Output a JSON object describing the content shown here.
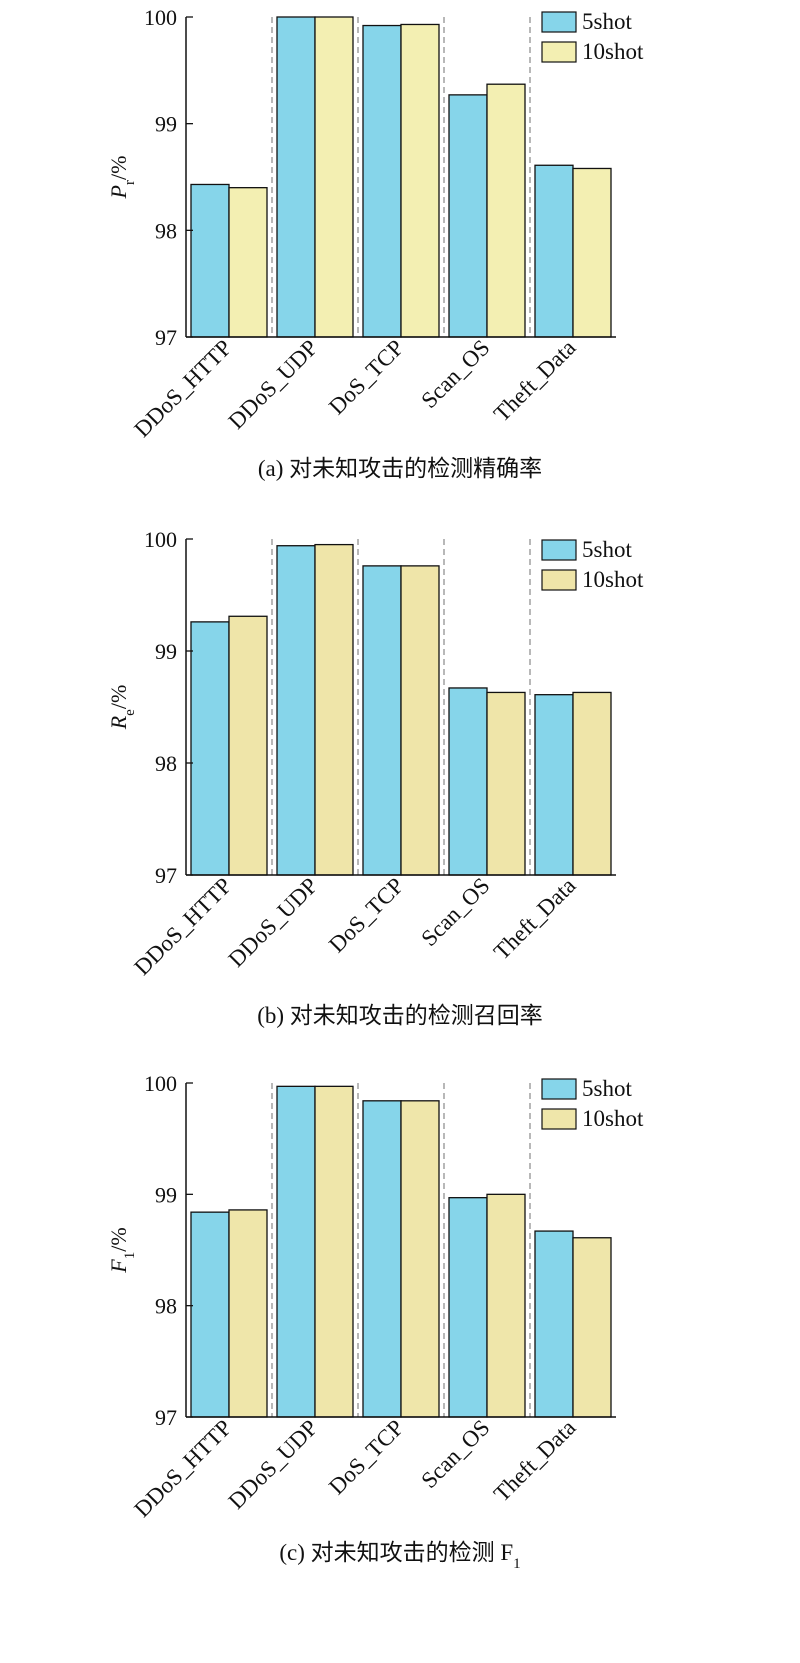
{
  "colors": {
    "series_5shot": "#86d5ea",
    "series_10shot": "#f3efb2",
    "panel_b_10shot": "#efe5a9",
    "panel_c_10shot": "#efe6aa",
    "axis": "#111111",
    "divider": "#888888"
  },
  "chart_data": [
    {
      "type": "bar",
      "caption": "(a) 对未知攻击的检测精确率",
      "ylabel": {
        "main": "P",
        "sub": "r",
        "unit": "/%"
      },
      "ylim": [
        97,
        100
      ],
      "yticks": [
        "97",
        "98",
        "99",
        "100"
      ],
      "categories": [
        "DDoS_HTTP",
        "DDoS_UDP",
        "DoS_TCP",
        "Scan_OS",
        "Theft_Data"
      ],
      "series": [
        {
          "name": "5shot",
          "values": [
            98.43,
            100.0,
            99.92,
            99.27,
            98.61
          ]
        },
        {
          "name": "10shot",
          "values": [
            98.4,
            100.0,
            99.93,
            99.37,
            98.58
          ]
        }
      ],
      "legend": "top-right",
      "grid": false
    },
    {
      "type": "bar",
      "caption": "(b) 对未知攻击的检测召回率",
      "ylabel": {
        "main": "R",
        "sub": "e",
        "unit": "/%"
      },
      "ylim": [
        97,
        100
      ],
      "yticks": [
        "97",
        "98",
        "99",
        "100"
      ],
      "categories": [
        "DDoS_HTTP",
        "DDoS_UDP",
        "DoS_TCP",
        "Scan_OS",
        "Theft_Data"
      ],
      "series": [
        {
          "name": "5shot",
          "values": [
            99.26,
            99.94,
            99.76,
            98.67,
            98.61
          ]
        },
        {
          "name": "10shot",
          "values": [
            99.31,
            99.95,
            99.76,
            98.63,
            98.63
          ]
        }
      ],
      "legend": "top-right",
      "grid": false
    },
    {
      "type": "bar",
      "caption": "(c) 对未知攻击的检测 F",
      "caption_sub": "1",
      "ylabel": {
        "main": "F",
        "sub": "1",
        "unit": "/%"
      },
      "ylim": [
        97,
        100
      ],
      "yticks": [
        "97",
        "98",
        "99",
        "100"
      ],
      "categories": [
        "DDoS_HTTP",
        "DDoS_UDP",
        "DoS_TCP",
        "Scan_OS",
        "Theft_Data"
      ],
      "series": [
        {
          "name": "5shot",
          "values": [
            98.84,
            99.97,
            99.84,
            98.97,
            98.67
          ]
        },
        {
          "name": "10shot",
          "values": [
            98.86,
            99.97,
            99.84,
            99.0,
            98.61
          ]
        }
      ],
      "legend": "top-right",
      "grid": false
    }
  ]
}
